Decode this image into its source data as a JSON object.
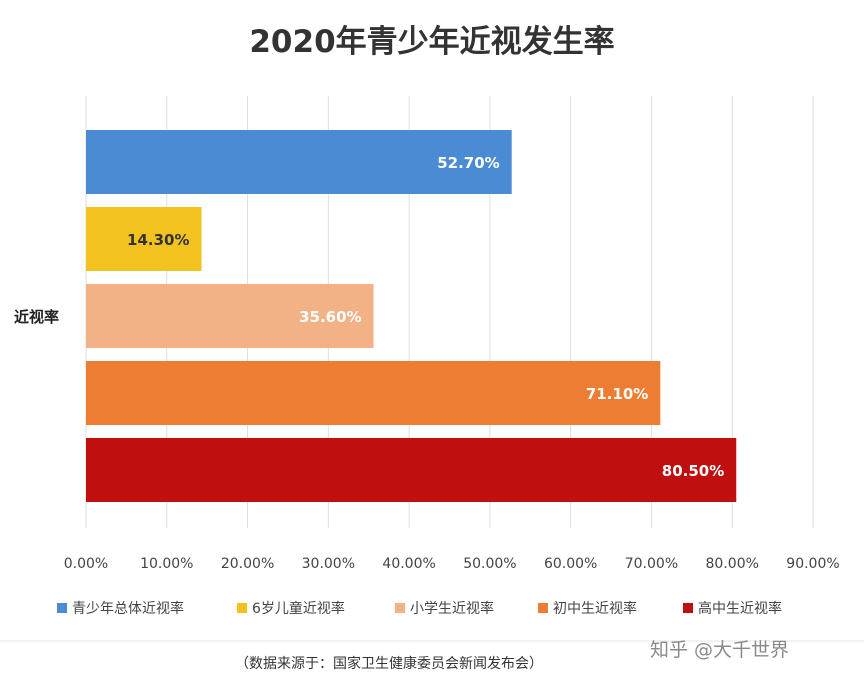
{
  "chart_data": {
    "type": "bar",
    "orientation": "horizontal",
    "title": "2020年青少年近视发生率",
    "ylabel": "近视率",
    "xlim": [
      0,
      90
    ],
    "xticks": [
      "0.00%",
      "10.00%",
      "20.00%",
      "30.00%",
      "40.00%",
      "50.00%",
      "60.00%",
      "70.00%",
      "80.00%",
      "90.00%"
    ],
    "grid": "vertical",
    "legend_position": "bottom",
    "series": [
      {
        "name": "青少年总体近视率",
        "value": 52.7,
        "label": "52.70%",
        "color": "#4a8bd4",
        "label_color": "#ffffff"
      },
      {
        "name": "6岁儿童近视率",
        "value": 14.3,
        "label": "14.30%",
        "color": "#f2c21f",
        "label_color": "#333333"
      },
      {
        "name": "小学生近视率",
        "value": 35.6,
        "label": "35.60%",
        "color": "#f2b286",
        "label_color": "#ffffff"
      },
      {
        "name": "初中生近视率",
        "value": 71.1,
        "label": "71.10%",
        "color": "#ec7d32",
        "label_color": "#ffffff"
      },
      {
        "name": "高中生近视率",
        "value": 80.5,
        "label": "80.50%",
        "color": "#c00f0f",
        "label_color": "#ffffff"
      }
    ]
  },
  "source_note": "（数据来源于：国家卫生健康委员会新闻发布会）",
  "watermark": "知乎 @大千世界"
}
